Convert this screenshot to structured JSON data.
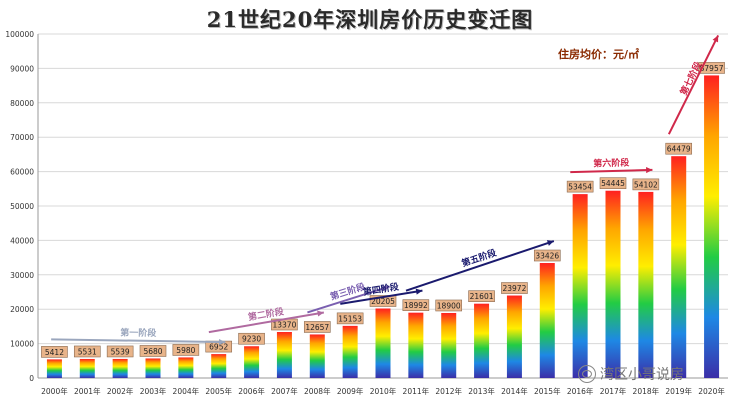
{
  "chart_data": {
    "type": "bar",
    "title": "21世纪20年深圳房价历史变迁图",
    "unit_label": "住房均价：元/㎡",
    "categories": [
      "2000年",
      "2001年",
      "2002年",
      "2003年",
      "2004年",
      "2005年",
      "2006年",
      "2007年",
      "2008年",
      "2009年",
      "2010年",
      "2011年",
      "2012年",
      "2013年",
      "2014年",
      "2015年",
      "2016年",
      "2017年",
      "2018年",
      "2019年",
      "2020年"
    ],
    "values": [
      5412,
      5531,
      5539,
      5680,
      5980,
      6952,
      9230,
      13370,
      12657,
      15153,
      20205,
      18992,
      18900,
      21601,
      23972,
      33426,
      53454,
      54445,
      54102,
      64479,
      87957
    ],
    "ylim": [
      0,
      100000
    ],
    "yticks": [
      0,
      10000,
      20000,
      30000,
      40000,
      50000,
      60000,
      70000,
      80000,
      90000,
      100000
    ],
    "grid": true,
    "bar_gradient": [
      "#ff2020",
      "#ffa500",
      "#ffee00",
      "#22cc44",
      "#1e88e5",
      "#3b2ea8"
    ],
    "label_box_color": "#e8b48a",
    "arrow_color": "#c8c8c8",
    "phases": [
      {
        "label": "第一阶段",
        "from_year": "2000年",
        "to_year": "2005年",
        "color": "#9aa6bd"
      },
      {
        "label": "第二阶段",
        "from_year": "2005年",
        "to_year": "2008年",
        "color": "#b06aa0"
      },
      {
        "label": "第三阶段",
        "from_year": "2008年",
        "to_year": "2010年",
        "color": "#7a5fb0"
      },
      {
        "label": "第四阶段",
        "from_year": "2009年",
        "to_year": "2011年",
        "color": "#1a1a6e"
      },
      {
        "label": "第五阶段",
        "from_year": "2011年",
        "to_year": "2015年",
        "color": "#1a1a6e"
      },
      {
        "label": "第六阶段",
        "from_year": "2016年",
        "to_year": "2018年",
        "color": "#d0284a"
      },
      {
        "label": "第七阶段",
        "from_year": "2019年",
        "to_year": "2020年",
        "color": "#d0284a"
      }
    ]
  },
  "watermark": "湾区小哥说房"
}
